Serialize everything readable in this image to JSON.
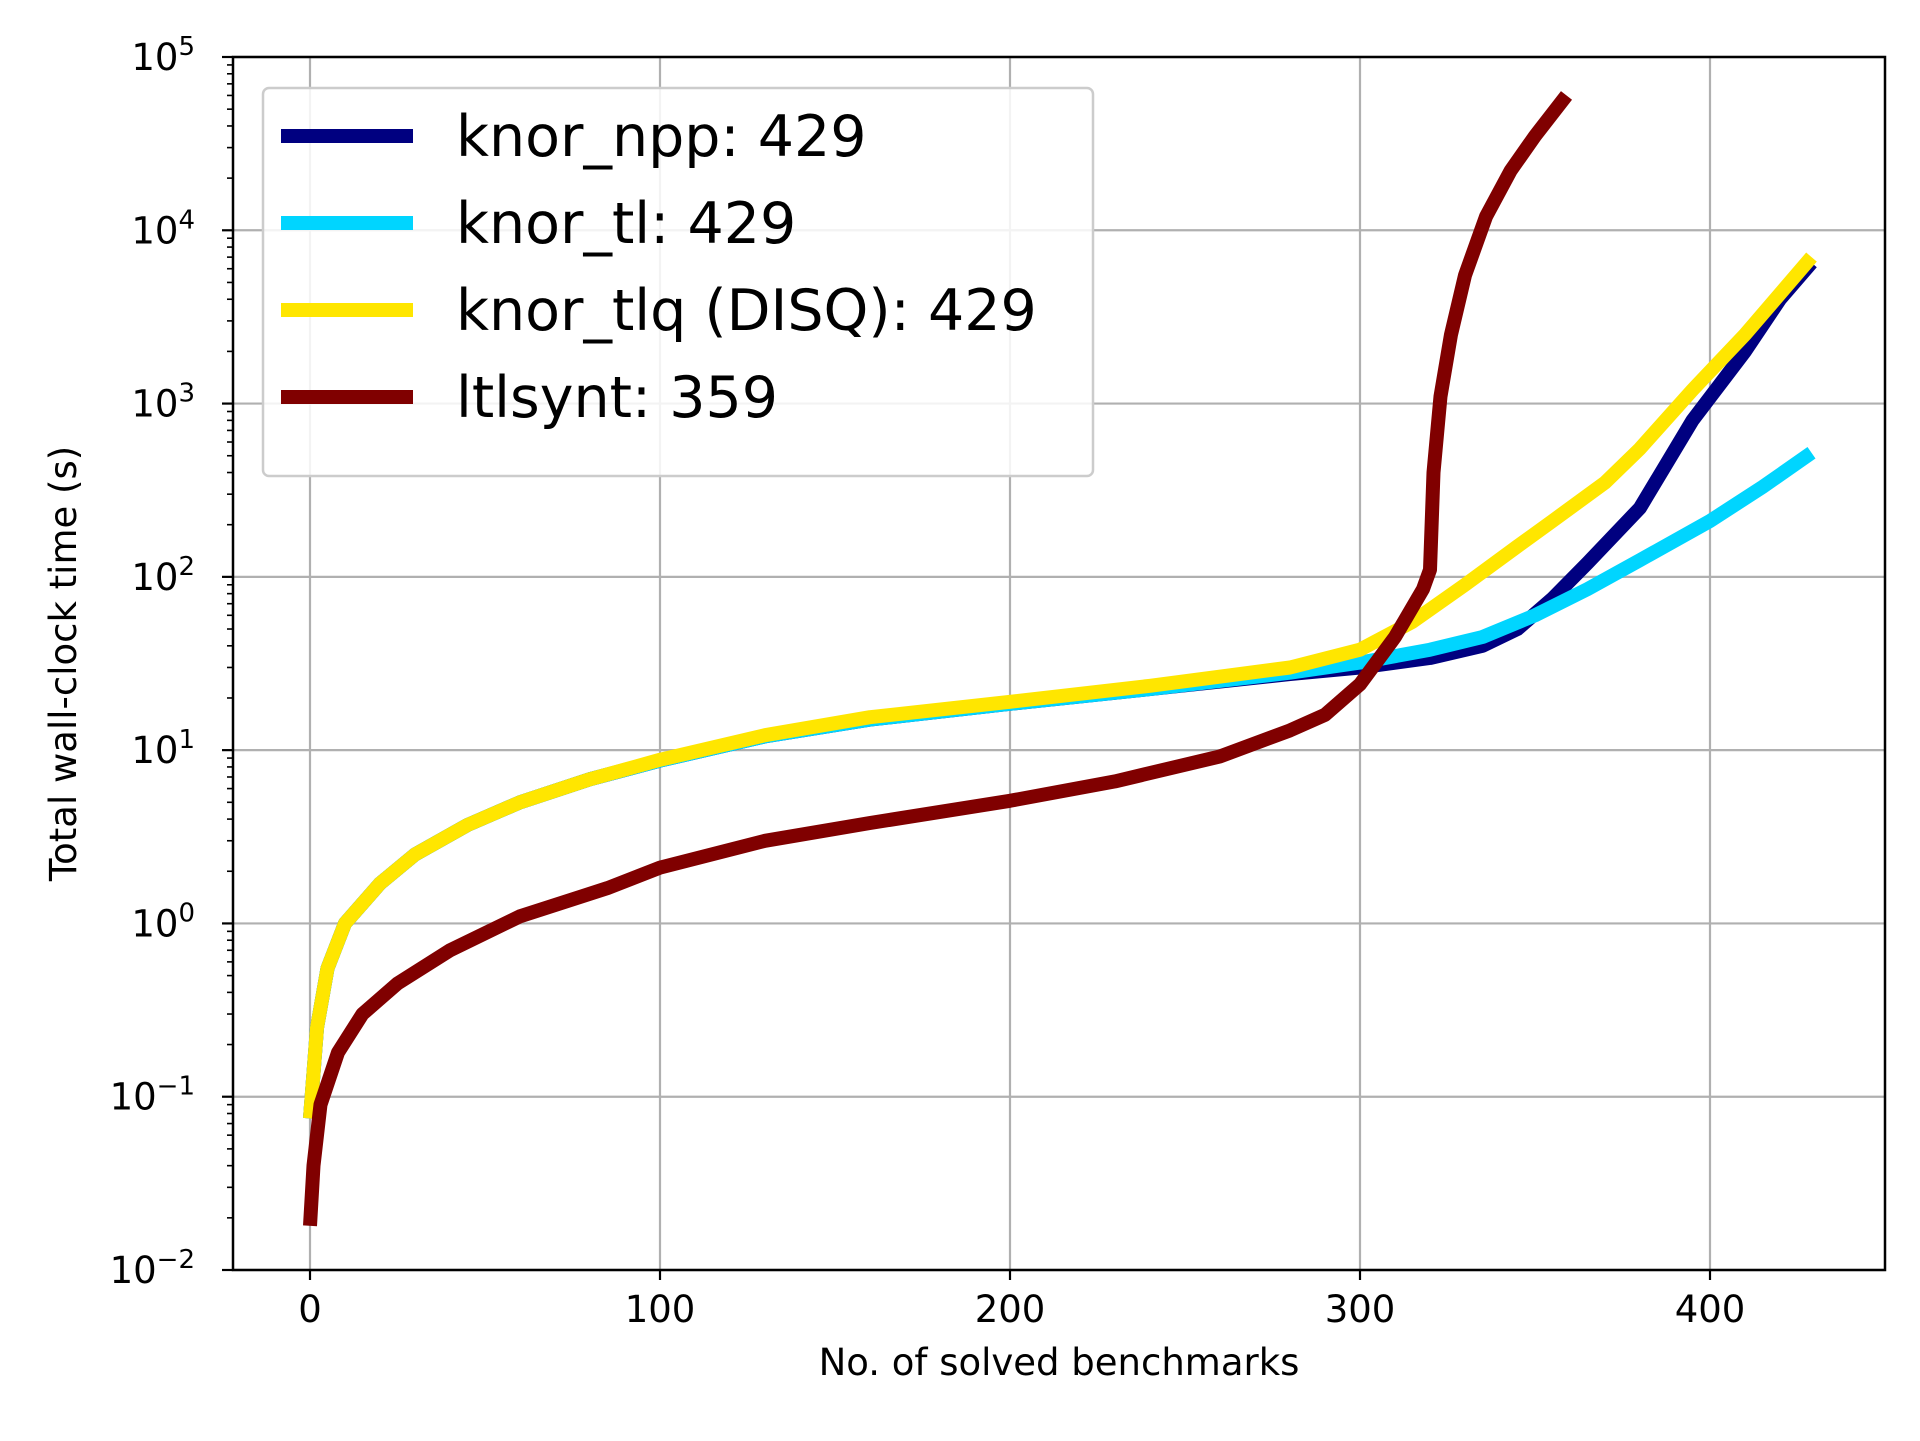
{
  "chart_data": {
    "type": "line",
    "title": "",
    "xlabel": "No. of solved benchmarks",
    "ylabel": "Total wall-clock time (s)",
    "xlim": [
      -22,
      450
    ],
    "ylim": [
      0.01,
      100000
    ],
    "yscale": "log",
    "grid": true,
    "legend_position": "top-left",
    "x_ticks": [
      {
        "value": 0,
        "label": "0"
      },
      {
        "value": 100,
        "label": "100"
      },
      {
        "value": 200,
        "label": "200"
      },
      {
        "value": 300,
        "label": "300"
      },
      {
        "value": 400,
        "label": "400"
      }
    ],
    "y_ticks": [
      {
        "value": 0.01,
        "base": "10",
        "exp": "−2"
      },
      {
        "value": 0.1,
        "base": "10",
        "exp": "−1"
      },
      {
        "value": 1,
        "base": "10",
        "exp": "0"
      },
      {
        "value": 10,
        "base": "10",
        "exp": "1"
      },
      {
        "value": 100,
        "base": "10",
        "exp": "2"
      },
      {
        "value": 1000,
        "base": "10",
        "exp": "3"
      },
      {
        "value": 10000,
        "base": "10",
        "exp": "4"
      },
      {
        "value": 100000,
        "base": "10",
        "exp": "5"
      }
    ],
    "series": [
      {
        "name": "knor_npp: 429",
        "color": "#000080",
        "points": [
          [
            0,
            0.075
          ],
          [
            2,
            0.25
          ],
          [
            5,
            0.55
          ],
          [
            10,
            1.0
          ],
          [
            20,
            1.7
          ],
          [
            30,
            2.5
          ],
          [
            45,
            3.7
          ],
          [
            60,
            5.0
          ],
          [
            80,
            6.8
          ],
          [
            100,
            8.7
          ],
          [
            130,
            12.0
          ],
          [
            160,
            15.0
          ],
          [
            200,
            18.5
          ],
          [
            240,
            22.5
          ],
          [
            280,
            27.5
          ],
          [
            300,
            30.0
          ],
          [
            320,
            34.0
          ],
          [
            335,
            40.0
          ],
          [
            345,
            50.0
          ],
          [
            355,
            75.0
          ],
          [
            365,
            120.0
          ],
          [
            380,
            250.0
          ],
          [
            395,
            800.0
          ],
          [
            410,
            2000.0
          ],
          [
            420,
            4000.0
          ],
          [
            429,
            6500.0
          ]
        ]
      },
      {
        "name": "knor_tl: 429",
        "color": "#00d5ff",
        "points": [
          [
            0,
            0.075
          ],
          [
            2,
            0.25
          ],
          [
            5,
            0.55
          ],
          [
            10,
            1.0
          ],
          [
            20,
            1.7
          ],
          [
            30,
            2.5
          ],
          [
            45,
            3.7
          ],
          [
            60,
            5.0
          ],
          [
            80,
            6.8
          ],
          [
            100,
            8.7
          ],
          [
            130,
            12.0
          ],
          [
            160,
            15.0
          ],
          [
            200,
            18.5
          ],
          [
            240,
            22.5
          ],
          [
            280,
            28.0
          ],
          [
            300,
            32.0
          ],
          [
            320,
            38.0
          ],
          [
            335,
            45.0
          ],
          [
            350,
            60.0
          ],
          [
            365,
            85.0
          ],
          [
            380,
            125.0
          ],
          [
            400,
            210.0
          ],
          [
            415,
            330.0
          ],
          [
            429,
            520.0
          ]
        ]
      },
      {
        "name": "knor_tlq (DISQ): 429",
        "color": "#ffe600",
        "points": [
          [
            0,
            0.075
          ],
          [
            2,
            0.25
          ],
          [
            5,
            0.55
          ],
          [
            10,
            1.0
          ],
          [
            20,
            1.7
          ],
          [
            30,
            2.5
          ],
          [
            45,
            3.7
          ],
          [
            60,
            5.0
          ],
          [
            80,
            6.8
          ],
          [
            100,
            8.8
          ],
          [
            130,
            12.2
          ],
          [
            160,
            15.5
          ],
          [
            200,
            19.0
          ],
          [
            240,
            23.5
          ],
          [
            280,
            30.0
          ],
          [
            300,
            38.0
          ],
          [
            315,
            55.0
          ],
          [
            330,
            90.0
          ],
          [
            345,
            150.0
          ],
          [
            355,
            210.0
          ],
          [
            370,
            350.0
          ],
          [
            380,
            550.0
          ],
          [
            395,
            1200.0
          ],
          [
            410,
            2500.0
          ],
          [
            420,
            4300.0
          ],
          [
            429,
            7000.0
          ]
        ]
      },
      {
        "name": "ltlsynt: 359",
        "color": "#800000",
        "points": [
          [
            0,
            0.018
          ],
          [
            1,
            0.04
          ],
          [
            3,
            0.09
          ],
          [
            8,
            0.18
          ],
          [
            15,
            0.3
          ],
          [
            25,
            0.45
          ],
          [
            40,
            0.7
          ],
          [
            60,
            1.1
          ],
          [
            85,
            1.6
          ],
          [
            100,
            2.1
          ],
          [
            130,
            3.0
          ],
          [
            160,
            3.8
          ],
          [
            200,
            5.1
          ],
          [
            230,
            6.6
          ],
          [
            260,
            9.2
          ],
          [
            280,
            13.0
          ],
          [
            290,
            16.0
          ],
          [
            300,
            24.0
          ],
          [
            310,
            45.0
          ],
          [
            318,
            85.0
          ],
          [
            320,
            110.0
          ],
          [
            321,
            400.0
          ],
          [
            323,
            1100.0
          ],
          [
            326,
            2500.0
          ],
          [
            330,
            5500.0
          ],
          [
            336,
            12000.0
          ],
          [
            343,
            22000.0
          ],
          [
            350,
            35000.0
          ],
          [
            359,
            60000.0
          ]
        ]
      }
    ]
  }
}
